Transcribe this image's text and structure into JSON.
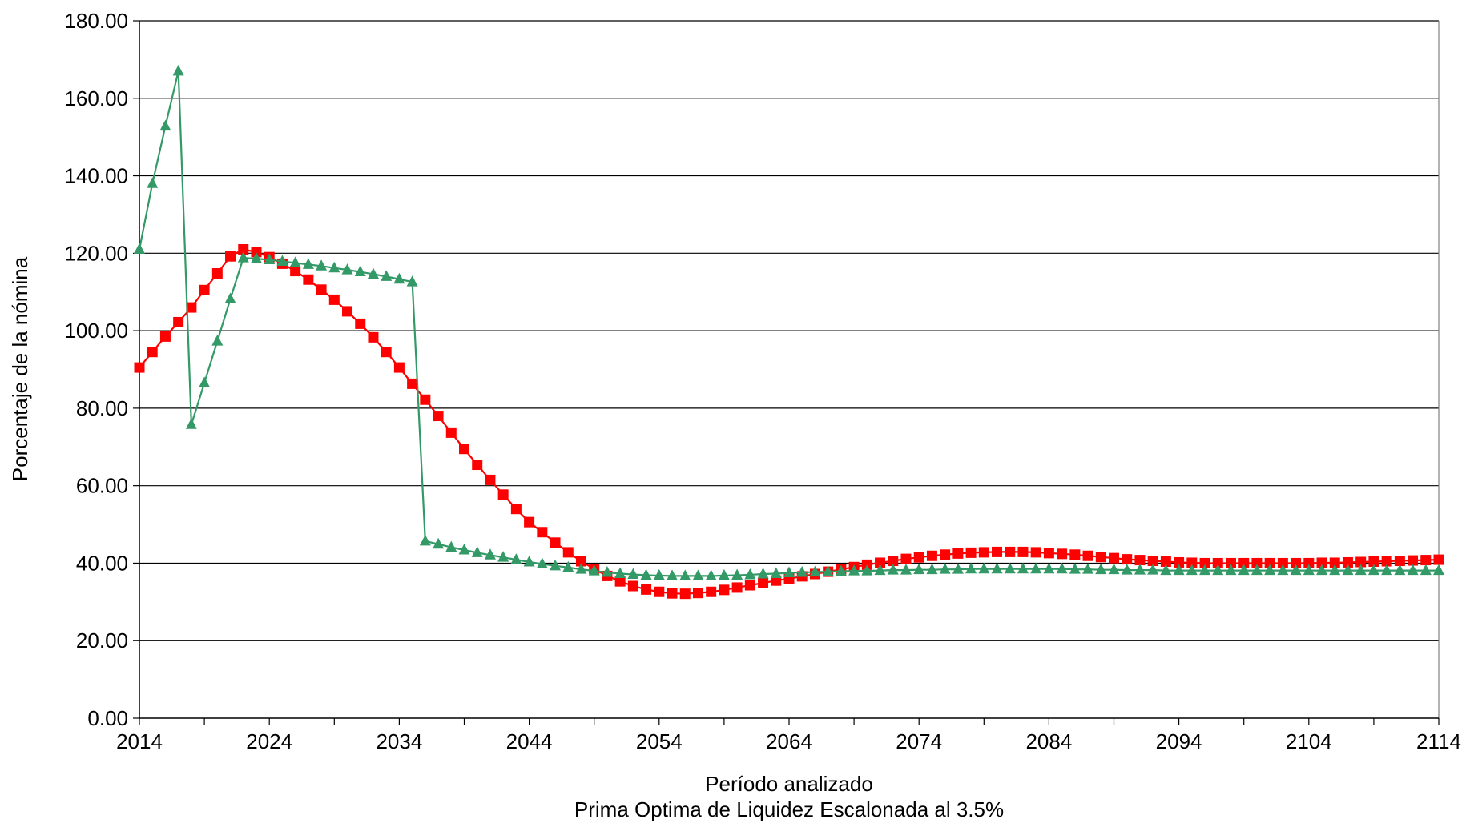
{
  "chart_data": {
    "type": "line",
    "title": "",
    "xlabel": "Período analizado",
    "xlabel_line2": "Prima Optima de Liquidez Escalonada al 3.5%",
    "ylabel": "Porcentaje de la nómina",
    "xlim": [
      2014,
      2114
    ],
    "ylim": [
      0,
      180
    ],
    "x_ticks": [
      2014,
      2024,
      2034,
      2044,
      2054,
      2064,
      2074,
      2084,
      2094,
      2104,
      2114
    ],
    "y_ticks": [
      0,
      20,
      40,
      60,
      80,
      100,
      120,
      140,
      160,
      180
    ],
    "y_tick_labels": [
      "0.00",
      "20.00",
      "40.00",
      "60.00",
      "80.00",
      "100.00",
      "120.00",
      "140.00",
      "160.00",
      "180.00"
    ],
    "grid": "horizontal",
    "legend": "none",
    "colors": {
      "red_series": "#ff0000",
      "green_series": "#339966",
      "grid": "#000000"
    },
    "series": [
      {
        "marker": "square",
        "color": "#ff0000",
        "points": [
          [
            2014,
            90.5
          ],
          [
            2015,
            94.5
          ],
          [
            2016,
            98.5
          ],
          [
            2017,
            102.2
          ],
          [
            2018,
            106
          ],
          [
            2019,
            110.5
          ],
          [
            2020,
            114.8
          ],
          [
            2021,
            119.2
          ],
          [
            2022,
            121.0
          ],
          [
            2023,
            120.3
          ],
          [
            2024,
            119.0
          ],
          [
            2025,
            117.3
          ],
          [
            2026,
            115.4
          ],
          [
            2027,
            113.2
          ],
          [
            2028,
            110.6
          ],
          [
            2029,
            108.0
          ],
          [
            2030,
            105.0
          ],
          [
            2031,
            101.8
          ],
          [
            2032,
            98.3
          ],
          [
            2033,
            94.5
          ],
          [
            2034,
            90.5
          ],
          [
            2035,
            86.3
          ],
          [
            2036,
            82.2
          ],
          [
            2037,
            78.0
          ],
          [
            2038,
            73.7
          ],
          [
            2039,
            69.5
          ],
          [
            2040,
            65.4
          ],
          [
            2041,
            61.5
          ],
          [
            2042,
            57.7
          ],
          [
            2043,
            54.0
          ],
          [
            2044,
            50.6
          ],
          [
            2045,
            48.0
          ],
          [
            2046,
            45.3
          ],
          [
            2047,
            42.8
          ],
          [
            2048,
            40.5
          ],
          [
            2049,
            38.5
          ],
          [
            2050,
            36.7
          ],
          [
            2051,
            35.3
          ],
          [
            2052,
            34.1
          ],
          [
            2053,
            33.2
          ],
          [
            2054,
            32.6
          ],
          [
            2055,
            32.2
          ],
          [
            2056,
            32.1
          ],
          [
            2057,
            32.3
          ],
          [
            2058,
            32.6
          ],
          [
            2059,
            33.1
          ],
          [
            2060,
            33.7
          ],
          [
            2061,
            34.3
          ],
          [
            2062,
            34.9
          ],
          [
            2063,
            35.5
          ],
          [
            2064,
            36.0
          ],
          [
            2065,
            36.6
          ],
          [
            2066,
            37.2
          ],
          [
            2067,
            37.8
          ],
          [
            2068,
            38.4
          ],
          [
            2069,
            39.0
          ],
          [
            2070,
            39.6
          ],
          [
            2071,
            40.1
          ],
          [
            2072,
            40.6
          ],
          [
            2073,
            41.1
          ],
          [
            2074,
            41.5
          ],
          [
            2075,
            41.9
          ],
          [
            2076,
            42.2
          ],
          [
            2077,
            42.5
          ],
          [
            2078,
            42.7
          ],
          [
            2079,
            42.8
          ],
          [
            2080,
            42.9
          ],
          [
            2081,
            42.9
          ],
          [
            2082,
            42.9
          ],
          [
            2083,
            42.8
          ],
          [
            2084,
            42.6
          ],
          [
            2085,
            42.4
          ],
          [
            2086,
            42.2
          ],
          [
            2087,
            41.9
          ],
          [
            2088,
            41.6
          ],
          [
            2089,
            41.3
          ],
          [
            2090,
            41.0
          ],
          [
            2091,
            40.8
          ],
          [
            2092,
            40.6
          ],
          [
            2093,
            40.4
          ],
          [
            2094,
            40.2
          ],
          [
            2095,
            40.1
          ],
          [
            2096,
            40.0
          ],
          [
            2097,
            40.0
          ],
          [
            2098,
            40.0
          ],
          [
            2099,
            40.0
          ],
          [
            2100,
            40.0
          ],
          [
            2101,
            40.0
          ],
          [
            2102,
            40.0
          ],
          [
            2103,
            40.0
          ],
          [
            2104,
            40.0
          ],
          [
            2105,
            40.1
          ],
          [
            2106,
            40.1
          ],
          [
            2107,
            40.2
          ],
          [
            2108,
            40.3
          ],
          [
            2109,
            40.4
          ],
          [
            2110,
            40.5
          ],
          [
            2111,
            40.6
          ],
          [
            2112,
            40.7
          ],
          [
            2113,
            40.8
          ],
          [
            2114,
            40.9
          ]
        ]
      },
      {
        "marker": "triangle",
        "color": "#339966",
        "points": [
          [
            2014,
            121.0
          ],
          [
            2015,
            138.0
          ],
          [
            2016,
            152.8
          ],
          [
            2017,
            167.0
          ],
          [
            2018,
            75.8
          ],
          [
            2019,
            86.5
          ],
          [
            2020,
            97.3
          ],
          [
            2021,
            108.2
          ],
          [
            2022,
            118.8
          ],
          [
            2023,
            118.6
          ],
          [
            2024,
            118.3
          ],
          [
            2025,
            117.9
          ],
          [
            2026,
            117.5
          ],
          [
            2027,
            117.1
          ],
          [
            2028,
            116.7
          ],
          [
            2029,
            116.2
          ],
          [
            2030,
            115.7
          ],
          [
            2031,
            115.2
          ],
          [
            2032,
            114.6
          ],
          [
            2033,
            114.0
          ],
          [
            2034,
            113.3
          ],
          [
            2035,
            112.6
          ],
          [
            2036,
            45.7
          ],
          [
            2037,
            44.9
          ],
          [
            2038,
            44.1
          ],
          [
            2039,
            43.4
          ],
          [
            2040,
            42.7
          ],
          [
            2041,
            42.1
          ],
          [
            2042,
            41.5
          ],
          [
            2043,
            40.9
          ],
          [
            2044,
            40.3
          ],
          [
            2045,
            39.8
          ],
          [
            2046,
            39.3
          ],
          [
            2047,
            38.9
          ],
          [
            2048,
            38.4
          ],
          [
            2049,
            38.0
          ],
          [
            2050,
            37.6
          ],
          [
            2051,
            37.3
          ],
          [
            2052,
            37.1
          ],
          [
            2053,
            36.9
          ],
          [
            2054,
            36.8
          ],
          [
            2055,
            36.7
          ],
          [
            2056,
            36.7
          ],
          [
            2057,
            36.7
          ],
          [
            2058,
            36.7
          ],
          [
            2059,
            36.8
          ],
          [
            2060,
            36.9
          ],
          [
            2061,
            37.0
          ],
          [
            2062,
            37.2
          ],
          [
            2063,
            37.3
          ],
          [
            2064,
            37.5
          ],
          [
            2065,
            37.6
          ],
          [
            2066,
            37.7
          ],
          [
            2067,
            37.8
          ],
          [
            2068,
            37.9
          ],
          [
            2069,
            38.0
          ],
          [
            2070,
            38.0
          ],
          [
            2071,
            38.1
          ],
          [
            2072,
            38.2
          ],
          [
            2073,
            38.2
          ],
          [
            2074,
            38.3
          ],
          [
            2075,
            38.3
          ],
          [
            2076,
            38.4
          ],
          [
            2077,
            38.4
          ],
          [
            2078,
            38.5
          ],
          [
            2079,
            38.5
          ],
          [
            2080,
            38.5
          ],
          [
            2081,
            38.5
          ],
          [
            2082,
            38.5
          ],
          [
            2083,
            38.5
          ],
          [
            2084,
            38.5
          ],
          [
            2085,
            38.5
          ],
          [
            2086,
            38.4
          ],
          [
            2087,
            38.4
          ],
          [
            2088,
            38.3
          ],
          [
            2089,
            38.3
          ],
          [
            2090,
            38.2
          ],
          [
            2091,
            38.2
          ],
          [
            2092,
            38.2
          ],
          [
            2093,
            38.1
          ],
          [
            2094,
            38.1
          ],
          [
            2095,
            38.1
          ],
          [
            2096,
            38.1
          ],
          [
            2097,
            38.1
          ],
          [
            2098,
            38.1
          ],
          [
            2099,
            38.1
          ],
          [
            2100,
            38.1
          ],
          [
            2101,
            38.1
          ],
          [
            2102,
            38.1
          ],
          [
            2103,
            38.1
          ],
          [
            2104,
            38.1
          ],
          [
            2105,
            38.1
          ],
          [
            2106,
            38.1
          ],
          [
            2107,
            38.1
          ],
          [
            2108,
            38.1
          ],
          [
            2109,
            38.1
          ],
          [
            2110,
            38.1
          ],
          [
            2111,
            38.1
          ],
          [
            2112,
            38.1
          ],
          [
            2113,
            38.1
          ],
          [
            2114,
            38.1
          ]
        ]
      }
    ]
  }
}
